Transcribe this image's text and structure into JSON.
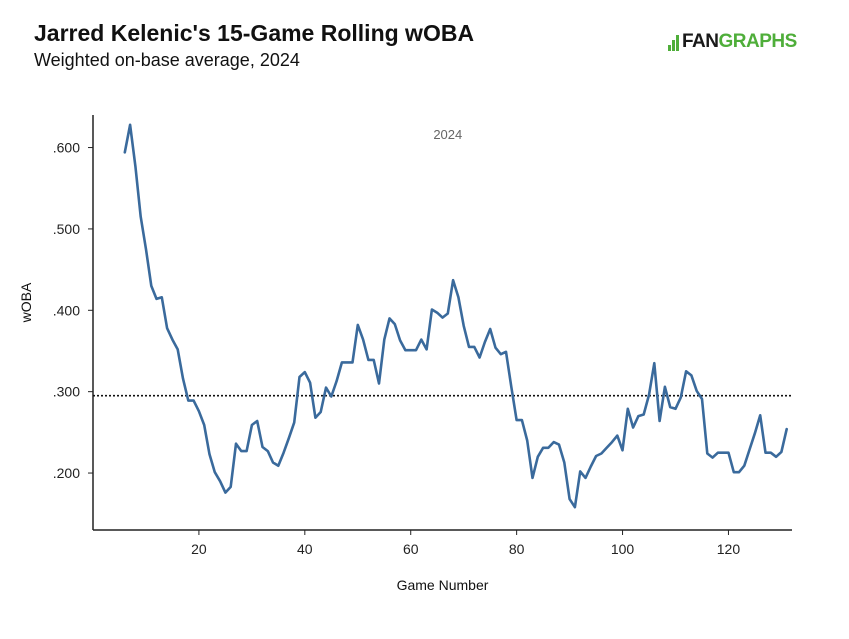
{
  "header": {
    "title": "Jarred Kelenic's 15-Game Rolling wOBA",
    "subtitle": "Weighted on-base average, 2024",
    "logo_prefix": "FAN",
    "logo_suffix": "GRAPHS"
  },
  "chart_data": {
    "type": "line",
    "title": "Jarred Kelenic's 15-Game Rolling wOBA",
    "subtitle": "Weighted on-base average, 2024",
    "xlabel": "Game Number",
    "ylabel": "wOBA",
    "xlim": [
      0,
      132
    ],
    "ylim": [
      0.13,
      0.64
    ],
    "xticks": [
      20,
      40,
      60,
      80,
      100,
      120
    ],
    "xtick_labels": [
      "20",
      "40",
      "60",
      "80",
      "100",
      "120"
    ],
    "yticks": [
      0.2,
      0.3,
      0.4,
      0.5,
      0.6
    ],
    "ytick_labels": [
      ".200",
      ".300",
      ".400",
      ".500",
      ".600"
    ],
    "annotation": "2024",
    "reference_line": 0.295,
    "grid": false,
    "series": [
      {
        "name": "15-Game Rolling wOBA",
        "color": "#3a6a9c",
        "x": [
          6,
          7,
          8,
          9,
          10,
          11,
          12,
          13,
          14,
          15,
          16,
          17,
          18,
          19,
          20,
          21,
          22,
          23,
          24,
          25,
          26,
          27,
          28,
          29,
          30,
          31,
          32,
          33,
          34,
          35,
          36,
          37,
          38,
          39,
          40,
          41,
          42,
          43,
          44,
          45,
          46,
          47,
          48,
          49,
          50,
          51,
          52,
          53,
          54,
          55,
          56,
          57,
          58,
          59,
          60,
          61,
          62,
          63,
          64,
          65,
          66,
          67,
          68,
          69,
          70,
          71,
          72,
          73,
          74,
          75,
          76,
          77,
          78,
          79,
          80,
          81,
          82,
          83,
          84,
          85,
          86,
          87,
          88,
          89,
          90,
          91,
          92,
          93,
          94,
          95,
          96,
          97,
          98,
          99,
          100,
          101,
          102,
          103,
          104,
          105,
          106,
          107,
          108,
          109,
          110,
          111,
          112,
          113,
          114,
          115,
          116,
          117,
          118,
          119,
          120,
          121,
          122,
          123,
          124,
          125,
          126,
          127,
          128,
          129,
          130,
          131
        ],
        "values": [
          0.594,
          0.628,
          0.577,
          0.515,
          0.475,
          0.43,
          0.414,
          0.416,
          0.378,
          0.364,
          0.352,
          0.316,
          0.289,
          0.289,
          0.276,
          0.259,
          0.223,
          0.201,
          0.19,
          0.176,
          0.183,
          0.236,
          0.227,
          0.227,
          0.259,
          0.264,
          0.232,
          0.227,
          0.213,
          0.209,
          0.225,
          0.243,
          0.262,
          0.318,
          0.324,
          0.311,
          0.268,
          0.275,
          0.305,
          0.294,
          0.313,
          0.336,
          0.336,
          0.336,
          0.382,
          0.364,
          0.339,
          0.339,
          0.31,
          0.364,
          0.39,
          0.383,
          0.363,
          0.351,
          0.351,
          0.351,
          0.364,
          0.352,
          0.401,
          0.397,
          0.391,
          0.396,
          0.437,
          0.416,
          0.381,
          0.355,
          0.355,
          0.342,
          0.361,
          0.377,
          0.354,
          0.346,
          0.349,
          0.306,
          0.265,
          0.265,
          0.24,
          0.194,
          0.22,
          0.231,
          0.231,
          0.238,
          0.235,
          0.213,
          0.168,
          0.158,
          0.202,
          0.194,
          0.208,
          0.221,
          0.224,
          0.231,
          0.238,
          0.246,
          0.228,
          0.279,
          0.256,
          0.27,
          0.272,
          0.296,
          0.335,
          0.264,
          0.306,
          0.281,
          0.279,
          0.293,
          0.325,
          0.32,
          0.301,
          0.291,
          0.224,
          0.219,
          0.225,
          0.225,
          0.225,
          0.201,
          0.201,
          0.209,
          0.229,
          0.249,
          0.271,
          0.225,
          0.225,
          0.22,
          0.226,
          0.254
        ]
      }
    ]
  }
}
